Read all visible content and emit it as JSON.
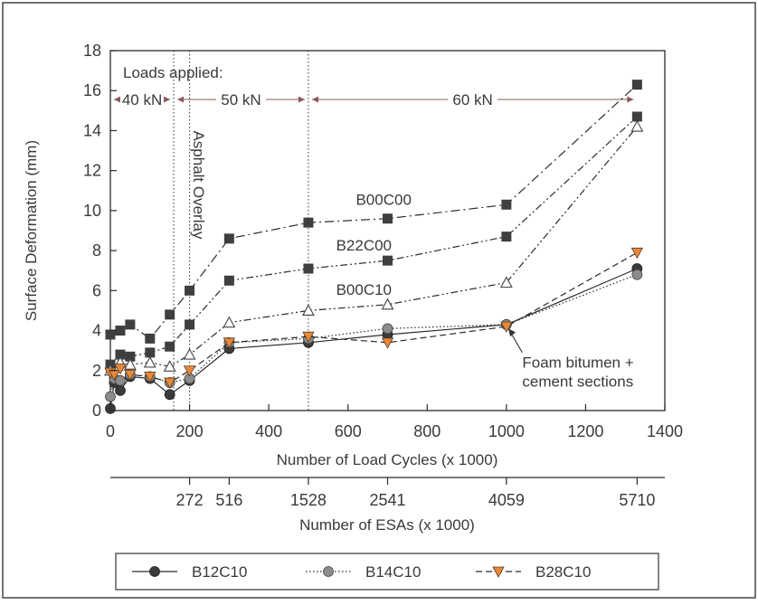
{
  "chart_data": {
    "type": "line",
    "xlabel": "Number of Load Cycles (x 1000)",
    "ylabel": "Surface Deformation (mm)",
    "xlim": [
      0,
      1400
    ],
    "ylim": [
      0,
      18
    ],
    "x_ticks": [
      0,
      200,
      400,
      600,
      800,
      1000,
      1200,
      1400
    ],
    "y_ticks": [
      0,
      2,
      4,
      6,
      8,
      10,
      12,
      14,
      16,
      18
    ],
    "grid": false,
    "legend_position": "bottom",
    "secondary_axis": {
      "label": "Number of ESAs (x 1000)",
      "ticks": [
        {
          "at_cycles": 200,
          "label": "272"
        },
        {
          "at_cycles": 300,
          "label": "516"
        },
        {
          "at_cycles": 500,
          "label": "1528"
        },
        {
          "at_cycles": 700,
          "label": "2541"
        },
        {
          "at_cycles": 1000,
          "label": "4059"
        },
        {
          "at_cycles": 1330,
          "label": "5710"
        }
      ]
    },
    "load_phases": {
      "title": "Loads applied:",
      "phases": [
        {
          "label": "40 kN",
          "from": 0,
          "to": 160
        },
        {
          "label": "50 kN",
          "from": 160,
          "to": 500
        },
        {
          "label": "60 kN",
          "from": 500,
          "to": 1330
        }
      ]
    },
    "vertical_markers": [
      160,
      200,
      500
    ],
    "annotations": [
      {
        "text": "Asphalt Overlay",
        "x": 210,
        "y": 14
      },
      {
        "text": "B00C00",
        "x": 620,
        "y": 10.3
      },
      {
        "text": "B22C00",
        "x": 570,
        "y": 8.0
      },
      {
        "text": "B00C10",
        "x": 570,
        "y": 5.8
      },
      {
        "text": "Foam bitumen +",
        "x": 1040,
        "y": 2.15
      },
      {
        "text": "cement sections",
        "x": 1040,
        "y": 1.2
      }
    ],
    "series": [
      {
        "label": "B00C00",
        "marker": "square-filled",
        "style": "dash-dot",
        "x": [
          0,
          25,
          50,
          100,
          150,
          200,
          300,
          500,
          700,
          1000,
          1330
        ],
        "y": [
          3.8,
          4.0,
          4.3,
          3.6,
          4.8,
          6.0,
          8.6,
          9.4,
          9.6,
          10.3,
          16.3
        ]
      },
      {
        "label": "B22C00",
        "marker": "square-filled",
        "style": "dash-dot-dot",
        "x": [
          0,
          25,
          50,
          100,
          150,
          200,
          300,
          500,
          700,
          1000,
          1330
        ],
        "y": [
          2.3,
          2.8,
          2.7,
          2.9,
          3.2,
          4.3,
          6.5,
          7.1,
          7.5,
          8.7,
          14.7
        ]
      },
      {
        "label": "B00C10",
        "marker": "triangle-open",
        "style": "dash-dot-dot",
        "x": [
          0,
          25,
          50,
          100,
          150,
          200,
          300,
          500,
          700,
          1000,
          1330
        ],
        "y": [
          2.0,
          2.4,
          2.3,
          2.4,
          2.2,
          2.8,
          4.4,
          5.0,
          5.3,
          6.4,
          14.2
        ]
      },
      {
        "name": "B12C10",
        "marker": "circle-dark",
        "style": "solid",
        "x": [
          0,
          10,
          25,
          50,
          100,
          150,
          200,
          300,
          500,
          700,
          1000,
          1330
        ],
        "y": [
          0.1,
          1.4,
          1.0,
          1.7,
          1.6,
          0.8,
          1.5,
          3.1,
          3.4,
          3.8,
          4.3,
          7.1
        ]
      },
      {
        "name": "B14C10",
        "marker": "circle-grey",
        "style": "dotted",
        "x": [
          0,
          10,
          25,
          50,
          100,
          150,
          200,
          300,
          500,
          700,
          1000,
          1330
        ],
        "y": [
          0.7,
          1.6,
          1.5,
          1.8,
          1.7,
          1.4,
          1.6,
          3.4,
          3.6,
          4.1,
          4.3,
          6.8
        ]
      },
      {
        "name": "B28C10",
        "marker": "triangle-down-orange",
        "style": "dashed",
        "x": [
          0,
          10,
          25,
          50,
          100,
          150,
          200,
          300,
          500,
          700,
          1000,
          1330
        ],
        "y": [
          1.9,
          1.8,
          2.1,
          1.8,
          1.7,
          1.4,
          2.0,
          3.4,
          3.7,
          3.4,
          4.2,
          7.9
        ]
      }
    ],
    "colors": {
      "line": "#2b2b2b",
      "axis_text": "#3a3a3a",
      "marker_dark": "#3b3b3b",
      "marker_grey": "#8c8c8c",
      "marker_orange": "#e8893a",
      "arrow": "#8a5a5a"
    }
  }
}
